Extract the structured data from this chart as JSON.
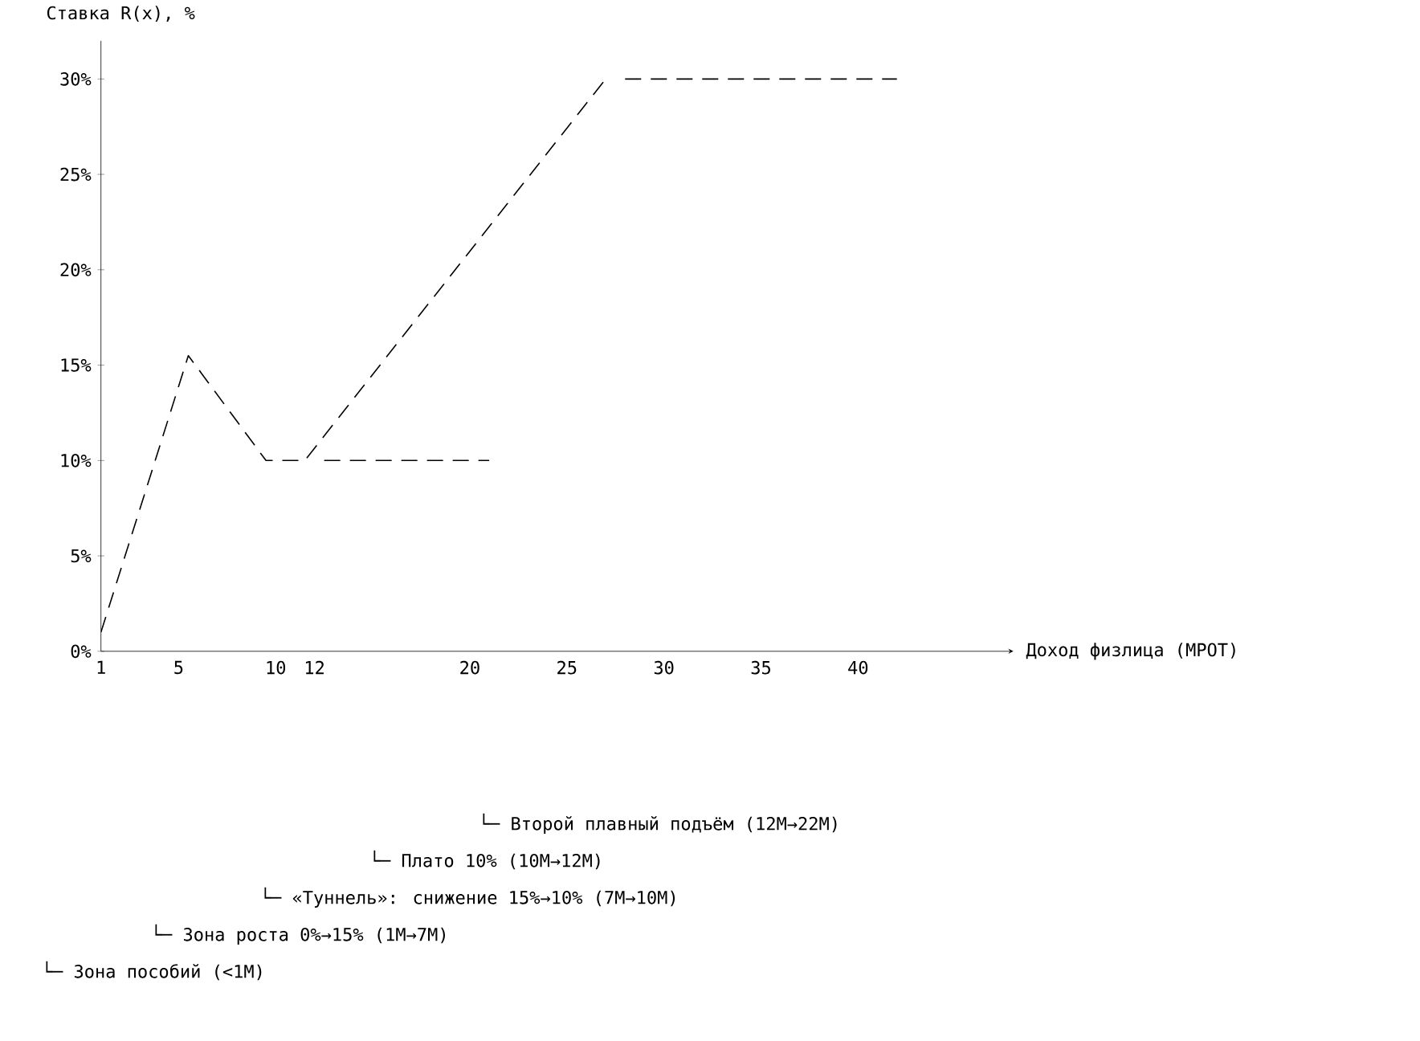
{
  "chart_data": {
    "type": "line",
    "xlabel": "Доход физлица (МРОТ)",
    "ylabel": "Ставка R(x), %",
    "series": [
      {
        "color": "#000000",
        "line_style": "dashed",
        "x": [
          1,
          5.5,
          9.5,
          11.5,
          27
        ],
        "values": [
          1,
          15.5,
          10,
          10,
          30
        ]
      },
      {
        "color": "#000000",
        "line_style": "dashed",
        "x": [
          28,
          42
        ],
        "values": [
          30,
          30
        ]
      },
      {
        "color": "#000000",
        "line_style": "dashed",
        "x": [
          12.5,
          21
        ],
        "values": [
          10,
          10
        ]
      }
    ],
    "xlim": [
      1,
      48
    ],
    "ylim": [
      0,
      32
    ],
    "xticks": [
      1,
      5,
      10,
      12,
      20,
      25,
      30,
      35,
      40
    ],
    "yticks": [
      {
        "value": 0,
        "label": "0%"
      },
      {
        "value": 5,
        "label": "5%"
      },
      {
        "value": 10,
        "label": "10%"
      },
      {
        "value": 15,
        "label": "15%"
      },
      {
        "value": 20,
        "label": "20%"
      },
      {
        "value": 25,
        "label": "25%"
      },
      {
        "value": 30,
        "label": "30%"
      }
    ],
    "marker": "none",
    "annotations": [
      "└─ Зона пособий (<1М)",
      "└─ Зона роста 0%→15% (1М→7М)",
      "└─ «Туннель»: снижение 15%→10% (7М→10М)",
      "└─ Плато 10% (10М→12М)",
      "└─ Второй плавный подъём (12М→22М)"
    ]
  }
}
